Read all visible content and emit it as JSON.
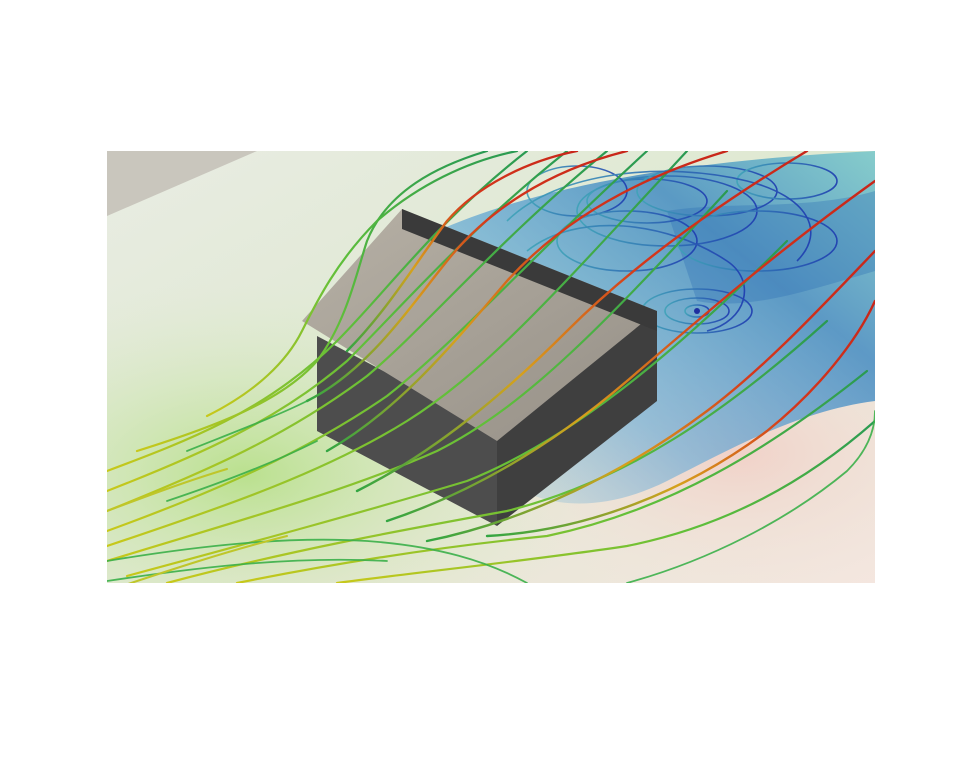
{
  "image": {
    "kind": "cfd-streamline-render",
    "colors": {
      "background": "#ffffff",
      "slow_flow": "#1f3fb8",
      "mid_flow": "#4fc36a",
      "fast_flow": "#d42a1a",
      "building_roof": "#a39d93",
      "building_wall": "#4a4a4a"
    }
  }
}
